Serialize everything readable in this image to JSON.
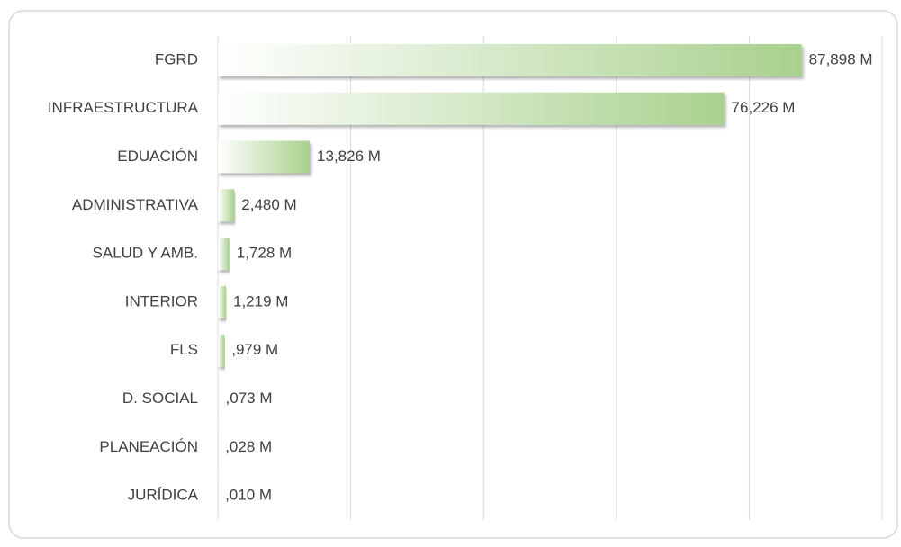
{
  "chart_data": {
    "type": "bar",
    "orientation": "horizontal",
    "categories": [
      "FGRD",
      "INFRAESTRUCTURA",
      "EDUACIÓN",
      "ADMINISTRATIVA",
      "SALUD Y AMB.",
      "INTERIOR",
      "FLS",
      "D. SOCIAL",
      "PLANEACIÓN",
      "JURÍDICA"
    ],
    "values": [
      87.898,
      76.226,
      13.826,
      2.48,
      1.728,
      1.219,
      0.979,
      0.073,
      0.028,
      0.01
    ],
    "value_labels": [
      "87,898 M",
      "76,226 M",
      "13,826 M",
      "2,480 M",
      "1,728 M",
      "1,219 M",
      ",979 M",
      ",073 M",
      ",028 M",
      ",010 M"
    ],
    "color": "#a9d18e",
    "xlim": [
      0,
      100
    ],
    "xticks": [
      0,
      20,
      40,
      60,
      80,
      100
    ],
    "grid": true
  }
}
